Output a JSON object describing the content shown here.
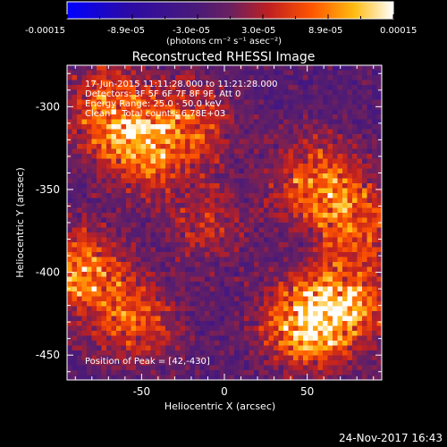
{
  "colorbar": {
    "tick_labels": [
      "-0.00015",
      "-8.9e-05",
      "-3.0e-05",
      "3.0e-05",
      "8.9e-05",
      "0.00015"
    ],
    "units": "(photons cm⁻² s⁻¹ asec⁻²)"
  },
  "footer": {
    "timestamp": "24-Nov-2017 16:43"
  },
  "chart_data": {
    "type": "heatmap",
    "title": "Reconstructed RHESSI Image",
    "xlabel": "Heliocentric X (arcsec)",
    "ylabel": "Heliocentric Y (arcsec)",
    "xlim": [
      -95,
      95
    ],
    "ylim": [
      -465,
      -275
    ],
    "xticks": [
      -50,
      0,
      50
    ],
    "yticks": [
      -300,
      -350,
      -400,
      -450
    ],
    "value_range": [
      -0.00015,
      0.00015
    ],
    "colormap": "rhessi-flux",
    "annotations": {
      "time_range": "17-Jun-2015 11:11:28.000 to 11:21:28.000",
      "detectors": "Detectors: 3F 5F 6F 7F 8F 9F, Att 0",
      "energy_range": "Energy Range: 25.0 - 50.0 keV",
      "method_counts": "Clean    Total counts: 6.78E+03",
      "peak": "Position of Peak = [42,-430]"
    },
    "peak_position": [
      42,
      -430
    ],
    "bright_regions": [
      {
        "x": -50,
        "y": -325,
        "peak": 0.00012
      },
      {
        "x": -70,
        "y": -300,
        "peak": 0.0001
      },
      {
        "x": -20,
        "y": -310,
        "peak": 8e-05
      },
      {
        "x": 55,
        "y": -345,
        "peak": 0.00011
      },
      {
        "x": 80,
        "y": -370,
        "peak": 9e-05
      },
      {
        "x": -85,
        "y": -400,
        "peak": 0.00012
      },
      {
        "x": -55,
        "y": -430,
        "peak": 9e-05
      },
      {
        "x": 48,
        "y": -432,
        "peak": 0.00015
      },
      {
        "x": 75,
        "y": -420,
        "peak": 0.00012
      },
      {
        "x": -10,
        "y": -370,
        "peak": 6e-05
      }
    ]
  }
}
